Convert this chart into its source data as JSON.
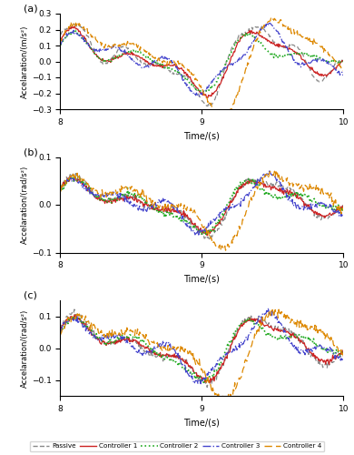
{
  "title_a": "(a)",
  "title_b": "(b)",
  "title_c": "(c)",
  "xlabel": "Time/(s)",
  "ylabel_a": "Accelaration/(m/s²)",
  "ylabel_b": "Accelaration/(rad/s²)",
  "ylabel_c": "Accelaration/(rad/s²)",
  "xlim": [
    8,
    10
  ],
  "ylim_a": [
    -0.3,
    0.3
  ],
  "ylim_b": [
    -0.1,
    0.1
  ],
  "ylim_c": [
    -0.15,
    0.15
  ],
  "yticks_a": [
    -0.3,
    -0.2,
    -0.1,
    0.0,
    0.1,
    0.2,
    0.3
  ],
  "yticks_b": [
    -0.1,
    0.0,
    0.1
  ],
  "yticks_c": [
    -0.1,
    0.0,
    0.1
  ],
  "xticks": [
    8,
    9,
    10
  ],
  "colors": {
    "passive": "#888888",
    "ctrl1": "#cc2222",
    "ctrl2": "#22aa22",
    "ctrl3": "#4444cc",
    "ctrl4": "#dd8800"
  },
  "legend_labels": [
    "Passive",
    "Controller 1",
    "Controller 2",
    "Controller 3",
    "Controller 4"
  ]
}
